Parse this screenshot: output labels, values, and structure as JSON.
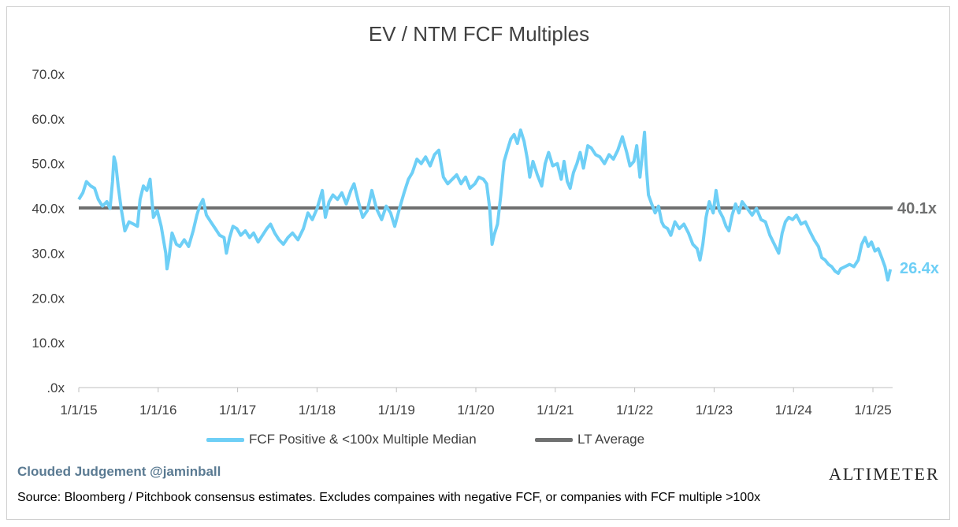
{
  "chart_data": {
    "type": "line",
    "title": "EV / NTM FCF Multiples",
    "y_ticks": [
      ".0x",
      "10.0x",
      "20.0x",
      "30.0x",
      "40.0x",
      "50.0x",
      "60.0x",
      "70.0x"
    ],
    "ylim": [
      0,
      70
    ],
    "x_ticks": [
      "1/1/15",
      "1/1/16",
      "1/1/17",
      "1/1/18",
      "1/1/19",
      "1/1/20",
      "1/1/21",
      "1/1/22",
      "1/1/23",
      "1/1/24",
      "1/1/25"
    ],
    "xlim": [
      "2015-01-01",
      "2025-04-01"
    ],
    "grid": false,
    "legend_position": "bottom",
    "series": [
      {
        "name": "FCF Positive & <100x Multiple Median",
        "color": "#6ecff6",
        "points": [
          [
            "2015-01-01",
            42.0
          ],
          [
            "2015-01-20",
            43.5
          ],
          [
            "2015-02-05",
            46.0
          ],
          [
            "2015-02-25",
            45.0
          ],
          [
            "2015-03-15",
            44.5
          ],
          [
            "2015-04-01",
            42.0
          ],
          [
            "2015-04-20",
            40.5
          ],
          [
            "2015-05-10",
            41.5
          ],
          [
            "2015-05-25",
            40.0
          ],
          [
            "2015-06-05",
            46.0
          ],
          [
            "2015-06-12",
            51.5
          ],
          [
            "2015-06-20",
            50.0
          ],
          [
            "2015-07-01",
            45.0
          ],
          [
            "2015-07-15",
            40.0
          ],
          [
            "2015-08-01",
            35.0
          ],
          [
            "2015-08-20",
            37.0
          ],
          [
            "2015-09-10",
            36.5
          ],
          [
            "2015-09-28",
            36.0
          ],
          [
            "2015-10-10",
            42.0
          ],
          [
            "2015-10-25",
            45.0
          ],
          [
            "2015-11-10",
            44.0
          ],
          [
            "2015-11-25",
            46.5
          ],
          [
            "2015-12-10",
            38.0
          ],
          [
            "2015-12-28",
            39.5
          ],
          [
            "2016-01-15",
            36.0
          ],
          [
            "2016-02-05",
            30.0
          ],
          [
            "2016-02-11",
            26.5
          ],
          [
            "2016-02-20",
            29.0
          ],
          [
            "2016-03-05",
            34.5
          ],
          [
            "2016-03-25",
            32.0
          ],
          [
            "2016-04-10",
            31.5
          ],
          [
            "2016-04-30",
            33.0
          ],
          [
            "2016-05-20",
            31.5
          ],
          [
            "2016-06-10",
            35.0
          ],
          [
            "2016-06-27",
            38.5
          ],
          [
            "2016-07-10",
            40.5
          ],
          [
            "2016-07-25",
            42.0
          ],
          [
            "2016-08-10",
            38.5
          ],
          [
            "2016-08-30",
            37.0
          ],
          [
            "2016-09-20",
            35.5
          ],
          [
            "2016-10-10",
            34.0
          ],
          [
            "2016-10-30",
            33.5
          ],
          [
            "2016-11-10",
            30.0
          ],
          [
            "2016-11-25",
            33.5
          ],
          [
            "2016-12-10",
            36.0
          ],
          [
            "2016-12-28",
            35.5
          ],
          [
            "2017-01-15",
            34.0
          ],
          [
            "2017-02-05",
            35.0
          ],
          [
            "2017-02-25",
            33.5
          ],
          [
            "2017-03-15",
            34.5
          ],
          [
            "2017-04-05",
            32.5
          ],
          [
            "2017-04-25",
            34.0
          ],
          [
            "2017-05-15",
            35.5
          ],
          [
            "2017-06-01",
            36.5
          ],
          [
            "2017-06-20",
            34.5
          ],
          [
            "2017-07-10",
            33.0
          ],
          [
            "2017-07-30",
            32.0
          ],
          [
            "2017-08-20",
            33.5
          ],
          [
            "2017-09-10",
            34.5
          ],
          [
            "2017-10-05",
            33.0
          ],
          [
            "2017-10-30",
            35.5
          ],
          [
            "2017-11-20",
            39.0
          ],
          [
            "2017-12-10",
            37.5
          ],
          [
            "2018-01-01",
            40.0
          ],
          [
            "2018-01-25",
            44.0
          ],
          [
            "2018-02-08",
            38.0
          ],
          [
            "2018-02-25",
            41.5
          ],
          [
            "2018-03-15",
            43.0
          ],
          [
            "2018-04-05",
            42.0
          ],
          [
            "2018-04-25",
            43.5
          ],
          [
            "2018-05-15",
            41.0
          ],
          [
            "2018-06-05",
            44.0
          ],
          [
            "2018-06-20",
            45.5
          ],
          [
            "2018-07-10",
            41.5
          ],
          [
            "2018-07-30",
            38.0
          ],
          [
            "2018-08-20",
            39.5
          ],
          [
            "2018-09-10",
            44.0
          ],
          [
            "2018-10-01",
            40.0
          ],
          [
            "2018-10-25",
            37.5
          ],
          [
            "2018-11-15",
            40.5
          ],
          [
            "2018-12-05",
            39.0
          ],
          [
            "2018-12-24",
            36.0
          ],
          [
            "2019-01-15",
            40.0
          ],
          [
            "2019-02-05",
            43.5
          ],
          [
            "2019-02-25",
            46.5
          ],
          [
            "2019-03-15",
            48.0
          ],
          [
            "2019-04-05",
            51.0
          ],
          [
            "2019-04-25",
            50.0
          ],
          [
            "2019-05-15",
            51.5
          ],
          [
            "2019-06-05",
            49.5
          ],
          [
            "2019-06-25",
            52.0
          ],
          [
            "2019-07-15",
            53.0
          ],
          [
            "2019-08-05",
            47.0
          ],
          [
            "2019-08-25",
            45.5
          ],
          [
            "2019-09-15",
            46.5
          ],
          [
            "2019-10-05",
            47.5
          ],
          [
            "2019-10-25",
            45.5
          ],
          [
            "2019-11-15",
            47.0
          ],
          [
            "2019-12-05",
            44.5
          ],
          [
            "2019-12-28",
            45.5
          ],
          [
            "2020-01-15",
            47.0
          ],
          [
            "2020-02-05",
            46.5
          ],
          [
            "2020-02-20",
            45.5
          ],
          [
            "2020-03-05",
            40.0
          ],
          [
            "2020-03-16",
            32.0
          ],
          [
            "2020-03-25",
            34.0
          ],
          [
            "2020-04-10",
            36.5
          ],
          [
            "2020-04-25",
            43.0
          ],
          [
            "2020-05-10",
            50.5
          ],
          [
            "2020-05-25",
            53.0
          ],
          [
            "2020-06-10",
            55.5
          ],
          [
            "2020-06-25",
            56.5
          ],
          [
            "2020-07-10",
            54.5
          ],
          [
            "2020-07-25",
            57.5
          ],
          [
            "2020-08-10",
            55.0
          ],
          [
            "2020-08-25",
            51.0
          ],
          [
            "2020-09-05",
            47.0
          ],
          [
            "2020-09-20",
            50.5
          ],
          [
            "2020-10-10",
            47.5
          ],
          [
            "2020-10-30",
            45.0
          ],
          [
            "2020-11-15",
            50.0
          ],
          [
            "2020-12-01",
            52.5
          ],
          [
            "2020-12-20",
            49.5
          ],
          [
            "2021-01-10",
            50.0
          ],
          [
            "2021-01-28",
            46.5
          ],
          [
            "2021-02-10",
            50.5
          ],
          [
            "2021-02-25",
            46.0
          ],
          [
            "2021-03-10",
            44.5
          ],
          [
            "2021-03-25",
            48.0
          ],
          [
            "2021-04-10",
            50.0
          ],
          [
            "2021-04-25",
            52.5
          ],
          [
            "2021-05-10",
            49.0
          ],
          [
            "2021-05-30",
            54.0
          ],
          [
            "2021-06-15",
            53.5
          ],
          [
            "2021-07-05",
            52.0
          ],
          [
            "2021-07-25",
            51.5
          ],
          [
            "2021-08-15",
            50.0
          ],
          [
            "2021-09-05",
            52.0
          ],
          [
            "2021-09-25",
            51.0
          ],
          [
            "2021-10-15",
            53.0
          ],
          [
            "2021-11-05",
            56.0
          ],
          [
            "2021-11-25",
            52.5
          ],
          [
            "2021-12-10",
            49.5
          ],
          [
            "2021-12-28",
            50.5
          ],
          [
            "2022-01-10",
            54.0
          ],
          [
            "2022-01-25",
            47.0
          ],
          [
            "2022-02-05",
            52.0
          ],
          [
            "2022-02-15",
            57.0
          ],
          [
            "2022-02-22",
            50.0
          ],
          [
            "2022-03-05",
            43.0
          ],
          [
            "2022-03-20",
            41.0
          ],
          [
            "2022-04-05",
            39.0
          ],
          [
            "2022-04-20",
            40.5
          ],
          [
            "2022-05-05",
            37.0
          ],
          [
            "2022-05-15",
            36.0
          ],
          [
            "2022-06-01",
            35.5
          ],
          [
            "2022-06-16",
            34.0
          ],
          [
            "2022-07-05",
            37.0
          ],
          [
            "2022-07-25",
            35.5
          ],
          [
            "2022-08-15",
            36.5
          ],
          [
            "2022-09-05",
            34.5
          ],
          [
            "2022-09-25",
            32.0
          ],
          [
            "2022-10-15",
            31.0
          ],
          [
            "2022-10-28",
            28.5
          ],
          [
            "2022-11-10",
            32.0
          ],
          [
            "2022-11-25",
            38.0
          ],
          [
            "2022-12-10",
            41.5
          ],
          [
            "2022-12-28",
            39.0
          ],
          [
            "2023-01-10",
            44.0
          ],
          [
            "2023-01-25",
            39.5
          ],
          [
            "2023-02-10",
            38.0
          ],
          [
            "2023-02-25",
            36.0
          ],
          [
            "2023-03-10",
            35.0
          ],
          [
            "2023-03-25",
            38.5
          ],
          [
            "2023-04-10",
            41.0
          ],
          [
            "2023-04-25",
            39.0
          ],
          [
            "2023-05-10",
            41.5
          ],
          [
            "2023-05-25",
            40.5
          ],
          [
            "2023-06-10",
            39.5
          ],
          [
            "2023-06-25",
            38.5
          ],
          [
            "2023-07-15",
            40.0
          ],
          [
            "2023-08-05",
            37.5
          ],
          [
            "2023-08-25",
            37.0
          ],
          [
            "2023-09-15",
            34.0
          ],
          [
            "2023-10-05",
            32.0
          ],
          [
            "2023-10-25",
            30.0
          ],
          [
            "2023-11-10",
            34.5
          ],
          [
            "2023-11-25",
            37.0
          ],
          [
            "2023-12-10",
            38.0
          ],
          [
            "2023-12-28",
            37.5
          ],
          [
            "2024-01-15",
            38.5
          ],
          [
            "2024-02-05",
            36.5
          ],
          [
            "2024-02-25",
            37.0
          ],
          [
            "2024-03-15",
            35.0
          ],
          [
            "2024-04-05",
            33.0
          ],
          [
            "2024-04-25",
            31.5
          ],
          [
            "2024-05-10",
            29.0
          ],
          [
            "2024-05-25",
            28.5
          ],
          [
            "2024-06-10",
            27.5
          ],
          [
            "2024-06-25",
            27.0
          ],
          [
            "2024-07-10",
            26.0
          ],
          [
            "2024-07-25",
            25.5
          ],
          [
            "2024-08-05",
            26.5
          ],
          [
            "2024-08-25",
            27.0
          ],
          [
            "2024-09-15",
            27.5
          ],
          [
            "2024-10-05",
            27.0
          ],
          [
            "2024-10-25",
            28.5
          ],
          [
            "2024-11-10",
            32.0
          ],
          [
            "2024-11-25",
            33.5
          ],
          [
            "2024-12-10",
            31.5
          ],
          [
            "2024-12-25",
            32.5
          ],
          [
            "2025-01-10",
            30.5
          ],
          [
            "2025-01-25",
            31.0
          ],
          [
            "2025-02-10",
            29.0
          ],
          [
            "2025-02-25",
            27.0
          ],
          [
            "2025-03-10",
            24.0
          ],
          [
            "2025-03-22",
            26.4
          ]
        ],
        "end_label": "26.4x"
      },
      {
        "name": "LT Average",
        "color": "#6f7070",
        "value": 40.1,
        "end_label": "40.1x"
      }
    ]
  },
  "footer": {
    "credit": "Clouded Judgement @jaminball",
    "brand": "ALTIMETER",
    "source": "Source: Bloomberg / Pitchbook consensus estimates. Excludes compaines with negative FCF, or companies with FCF multiple >100x"
  }
}
